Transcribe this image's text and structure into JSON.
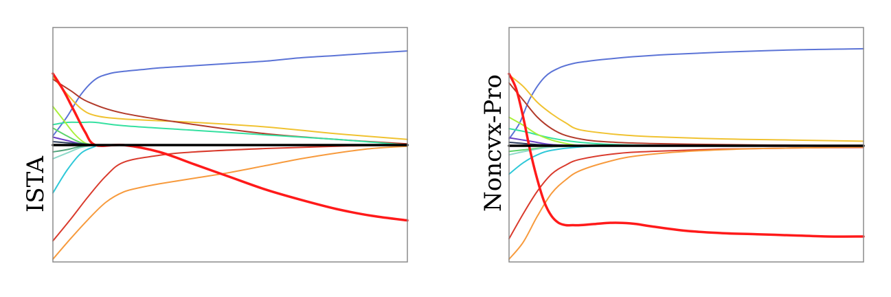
{
  "chart_data": [
    {
      "type": "line",
      "ylabel": "ISTA",
      "xlabel": "",
      "title": "",
      "xlim": [
        0,
        100
      ],
      "ylim": [
        -1,
        1
      ],
      "grid": false,
      "legend": "none",
      "series": [
        {
          "color": "#5b73d6",
          "width": 2,
          "x": [
            0,
            4,
            8,
            12,
            16,
            20,
            25,
            30,
            40,
            50,
            60,
            70,
            80,
            90,
            100
          ],
          "y": [
            0.08,
            0.25,
            0.45,
            0.58,
            0.63,
            0.65,
            0.665,
            0.68,
            0.7,
            0.72,
            0.74,
            0.77,
            0.79,
            0.81,
            0.83
          ]
        },
        {
          "color": "#f0c230",
          "width": 2,
          "x": [
            0,
            4,
            8,
            12,
            20,
            40,
            60,
            80,
            100
          ],
          "y": [
            0.6,
            0.45,
            0.32,
            0.26,
            0.23,
            0.2,
            0.16,
            0.1,
            0.05
          ]
        },
        {
          "color": "#b23a2a",
          "width": 2,
          "x": [
            0,
            5,
            10,
            20,
            40,
            60,
            80,
            100
          ],
          "y": [
            0.58,
            0.48,
            0.38,
            0.28,
            0.18,
            0.1,
            0.05,
            0.01
          ]
        },
        {
          "color": "#34e0a0",
          "width": 2,
          "x": [
            0,
            4,
            8,
            12,
            20,
            40,
            60,
            80,
            100
          ],
          "y": [
            0.18,
            0.2,
            0.2,
            0.2,
            0.17,
            0.13,
            0.09,
            0.05,
            0.0
          ]
        },
        {
          "color": "#aaf03a",
          "width": 2,
          "x": [
            0,
            3,
            6,
            9,
            12
          ],
          "y": [
            0.34,
            0.22,
            0.1,
            0.02,
            0.0
          ]
        },
        {
          "color": "#5bd46a",
          "width": 2,
          "x": [
            0,
            4,
            8,
            12
          ],
          "y": [
            0.15,
            0.08,
            0.02,
            0.0
          ]
        },
        {
          "color": "#2ec8d8",
          "width": 2,
          "x": [
            0,
            4,
            8,
            12
          ],
          "y": [
            -0.42,
            -0.22,
            -0.07,
            -0.01
          ]
        },
        {
          "color": "#8cd9c8",
          "width": 2,
          "x": [
            0,
            4,
            8,
            12
          ],
          "y": [
            -0.12,
            -0.07,
            -0.02,
            0.0
          ]
        },
        {
          "color": "#4fa37a",
          "width": 2,
          "x": [
            0,
            4,
            8,
            12
          ],
          "y": [
            -0.06,
            -0.04,
            -0.01,
            0.0
          ]
        },
        {
          "color": "#6a3fc6",
          "width": 2,
          "x": [
            0,
            4,
            8,
            12
          ],
          "y": [
            0.07,
            0.04,
            0.01,
            0.0
          ]
        },
        {
          "color": "#2a3a5a",
          "width": 2,
          "x": [
            0,
            4,
            8,
            12
          ],
          "y": [
            0.03,
            0.02,
            0.01,
            0.0
          ]
        },
        {
          "color": "#d93a2c",
          "width": 2,
          "x": [
            0,
            5,
            10,
            15,
            20,
            30,
            40,
            60,
            80,
            100
          ],
          "y": [
            -0.84,
            -0.65,
            -0.45,
            -0.27,
            -0.15,
            -0.09,
            -0.06,
            -0.03,
            -0.01,
            0.0
          ]
        },
        {
          "color": "#f79a3c",
          "width": 2,
          "x": [
            0,
            5,
            10,
            15,
            20,
            25,
            30,
            40,
            50,
            60,
            70,
            80,
            90,
            100
          ],
          "y": [
            -1.0,
            -0.82,
            -0.65,
            -0.5,
            -0.41,
            -0.37,
            -0.34,
            -0.29,
            -0.24,
            -0.18,
            -0.12,
            -0.07,
            -0.03,
            -0.01
          ]
        },
        {
          "color": "#ff1a1a",
          "width": 3.5,
          "x": [
            0,
            3,
            6,
            9,
            12,
            20,
            30,
            40,
            50,
            60,
            70,
            80,
            90,
            100
          ],
          "y": [
            0.63,
            0.48,
            0.3,
            0.12,
            0.0,
            0.0,
            -0.06,
            -0.17,
            -0.28,
            -0.39,
            -0.48,
            -0.56,
            -0.62,
            -0.66
          ]
        },
        {
          "color": "#000000",
          "width": 3.5,
          "x": [
            0,
            100
          ],
          "y": [
            0.0,
            0.0
          ]
        }
      ]
    },
    {
      "type": "line",
      "ylabel": "Noncvx-Pro",
      "xlabel": "",
      "title": "",
      "xlim": [
        0,
        100
      ],
      "ylim": [
        -1,
        1
      ],
      "grid": false,
      "legend": "none",
      "series": [
        {
          "color": "#5b73d6",
          "width": 2,
          "x": [
            0,
            3,
            6,
            10,
            14,
            18,
            22,
            28,
            35,
            45,
            60,
            80,
            100
          ],
          "y": [
            0.06,
            0.2,
            0.42,
            0.6,
            0.68,
            0.72,
            0.74,
            0.76,
            0.78,
            0.8,
            0.82,
            0.84,
            0.85
          ]
        },
        {
          "color": "#f0c230",
          "width": 2,
          "x": [
            0,
            4,
            8,
            12,
            16,
            20,
            30,
            40,
            60,
            80,
            100
          ],
          "y": [
            0.62,
            0.52,
            0.38,
            0.28,
            0.2,
            0.14,
            0.1,
            0.08,
            0.06,
            0.05,
            0.04
          ]
        },
        {
          "color": "#b23a2a",
          "width": 2,
          "x": [
            0,
            4,
            8,
            12,
            16,
            22,
            30,
            40,
            60,
            80,
            100
          ],
          "y": [
            0.55,
            0.4,
            0.25,
            0.15,
            0.09,
            0.05,
            0.03,
            0.02,
            0.01,
            0.005,
            0.0
          ]
        },
        {
          "color": "#34e0a0",
          "width": 2,
          "x": [
            0,
            5,
            10,
            15,
            20,
            30,
            50,
            100
          ],
          "y": [
            0.15,
            0.12,
            0.08,
            0.05,
            0.03,
            0.01,
            0.0,
            0.0
          ]
        },
        {
          "color": "#aaf03a",
          "width": 2,
          "x": [
            0,
            4,
            8,
            12,
            16,
            20
          ],
          "y": [
            0.25,
            0.18,
            0.1,
            0.05,
            0.02,
            0.0
          ]
        },
        {
          "color": "#5bd46a",
          "width": 2,
          "x": [
            0,
            6,
            12,
            20
          ],
          "y": [
            -0.05,
            -0.03,
            -0.01,
            0.0
          ]
        },
        {
          "color": "#2ec8d8",
          "width": 2,
          "x": [
            0,
            4,
            8,
            12,
            20,
            30
          ],
          "y": [
            -0.25,
            -0.15,
            -0.08,
            -0.04,
            -0.01,
            0.0
          ]
        },
        {
          "color": "#8cd9c8",
          "width": 2,
          "x": [
            0,
            6,
            12,
            20
          ],
          "y": [
            -0.08,
            -0.04,
            -0.01,
            0.0
          ]
        },
        {
          "color": "#6a3fc6",
          "width": 2,
          "x": [
            0,
            6,
            12,
            20
          ],
          "y": [
            0.07,
            0.04,
            0.01,
            0.0
          ]
        },
        {
          "color": "#2a3a5a",
          "width": 2,
          "x": [
            0,
            6,
            12,
            20
          ],
          "y": [
            0.03,
            0.015,
            0.005,
            0.0
          ]
        },
        {
          "color": "#d93a2c",
          "width": 2,
          "x": [
            0,
            4,
            8,
            12,
            16,
            20,
            30,
            40,
            60,
            80,
            100
          ],
          "y": [
            -0.82,
            -0.6,
            -0.4,
            -0.25,
            -0.17,
            -0.12,
            -0.07,
            -0.05,
            -0.03,
            -0.02,
            -0.015
          ]
        },
        {
          "color": "#f79a3c",
          "width": 2,
          "x": [
            0,
            4,
            8,
            12,
            16,
            20,
            28,
            36,
            50,
            65,
            80,
            100
          ],
          "y": [
            -1.0,
            -0.85,
            -0.62,
            -0.42,
            -0.3,
            -0.22,
            -0.14,
            -0.09,
            -0.05,
            -0.03,
            -0.02,
            -0.01
          ]
        },
        {
          "color": "#ff1a1a",
          "width": 3.5,
          "x": [
            0,
            2,
            4,
            6,
            8,
            10,
            12,
            14,
            16,
            18,
            20,
            24,
            28,
            32,
            36,
            40,
            50,
            60,
            70,
            80,
            90,
            100
          ],
          "y": [
            0.63,
            0.5,
            0.25,
            -0.05,
            -0.3,
            -0.5,
            -0.62,
            -0.68,
            -0.7,
            -0.7,
            -0.7,
            -0.69,
            -0.68,
            -0.68,
            -0.69,
            -0.71,
            -0.75,
            -0.77,
            -0.78,
            -0.79,
            -0.8,
            -0.8
          ]
        },
        {
          "color": "#000000",
          "width": 3.5,
          "x": [
            0,
            100
          ],
          "y": [
            0.0,
            0.0
          ]
        }
      ]
    }
  ]
}
